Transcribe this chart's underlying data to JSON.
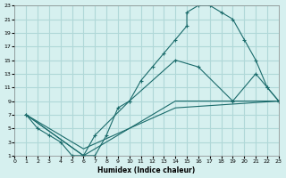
{
  "xlabel": "Humidex (Indice chaleur)",
  "bg_color": "#d6f0ef",
  "grid_color": "#b0d8d8",
  "line_color": "#1a6b6b",
  "xlim": [
    0,
    23
  ],
  "ylim": [
    1,
    23
  ],
  "xticks": [
    0,
    1,
    2,
    3,
    4,
    5,
    6,
    7,
    8,
    9,
    10,
    11,
    12,
    13,
    14,
    15,
    16,
    17,
    18,
    19,
    20,
    21,
    22,
    23
  ],
  "yticks": [
    1,
    3,
    5,
    7,
    9,
    11,
    13,
    15,
    17,
    19,
    21,
    23
  ],
  "line1_x": [
    1,
    2,
    3,
    4,
    5,
    6,
    7,
    8,
    9,
    10,
    11,
    12,
    13,
    14,
    15,
    15,
    16,
    17,
    18,
    19,
    20,
    21,
    22,
    23
  ],
  "line1_y": [
    7,
    5,
    4,
    3,
    1,
    1,
    1,
    4,
    8,
    9,
    12,
    14,
    16,
    18,
    20,
    22,
    23,
    23,
    22,
    21,
    18,
    15,
    11,
    9
  ],
  "line2_x": [
    1,
    6,
    7,
    10,
    14,
    16,
    19,
    21,
    22,
    23
  ],
  "line2_y": [
    7,
    1,
    4,
    9,
    15,
    14,
    9,
    13,
    11,
    9
  ],
  "line3_x": [
    1,
    6,
    14,
    23
  ],
  "line3_y": [
    7,
    1,
    9,
    9
  ],
  "line4_x": [
    1,
    6,
    14,
    23
  ],
  "line4_y": [
    7,
    2,
    8,
    9
  ]
}
